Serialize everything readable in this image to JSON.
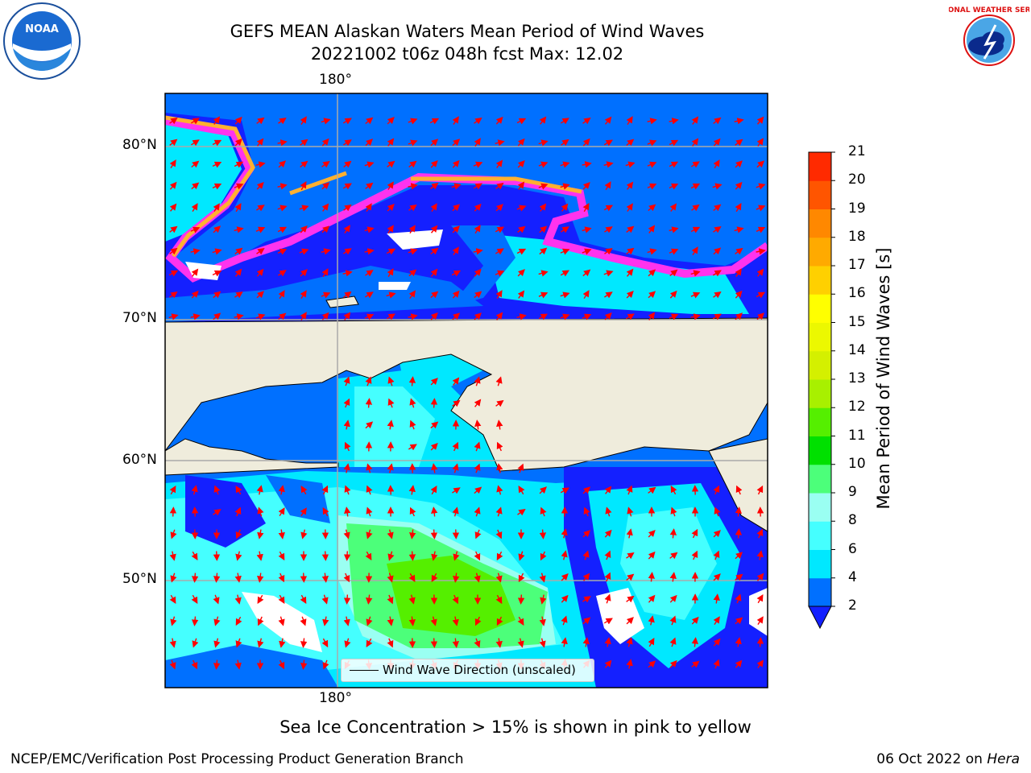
{
  "header": {
    "title_line1": "GEFS MEAN Alaskan Waters Mean Period of Wind Waves",
    "title_line2": "20221002 t06z 048h fcst   Max: 12.02"
  },
  "logos": {
    "left": "noaa-logo",
    "left_text": "NOAA",
    "right": "nws-logo",
    "right_text": "NATIONAL WEATHER SERVICE"
  },
  "map": {
    "lat_labels": [
      "80°N",
      "70°N",
      "60°N",
      "50°N"
    ],
    "lon_label_top": "180°",
    "lon_label_bottom": "180°",
    "legend_label": "Wind Wave Direction (unscaled)",
    "land_color": "#efecdc",
    "arrow_color": "#ff0000"
  },
  "colorbar": {
    "title": "Mean Period of Wind Waves [s]",
    "tick_labels": [
      "2",
      "4",
      "6",
      "8",
      "9",
      "10",
      "11",
      "12",
      "13",
      "14",
      "15",
      "16",
      "17",
      "18",
      "19",
      "20",
      "21"
    ],
    "colors": [
      "#0070ff",
      "#00e8ff",
      "#45ffff",
      "#9afff2",
      "#4cff7a",
      "#00e000",
      "#55ef00",
      "#a8f000",
      "#d4f000",
      "#ecf800",
      "#ffff00",
      "#ffd000",
      "#ffaa00",
      "#ff8800",
      "#ff5500",
      "#ff2a00"
    ],
    "under_color": "#1420ff"
  },
  "footer": {
    "note": "Sea Ice Concentration > 15% is shown in pink to yellow",
    "credit": "NCEP/EMC/Verification Post Processing Product Generation Branch",
    "date_prefix": "06 Oct 2022 on ",
    "machine": "Hera"
  }
}
